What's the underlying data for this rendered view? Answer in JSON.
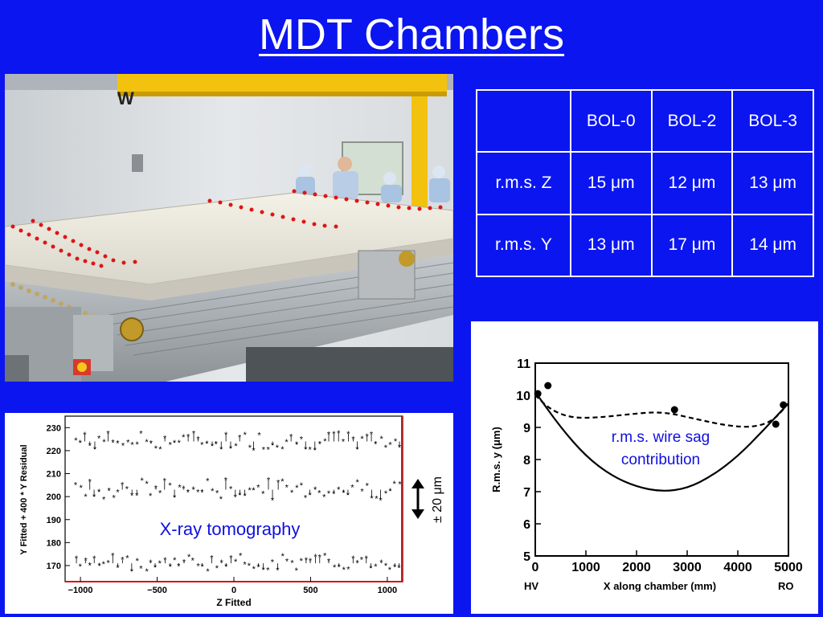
{
  "title": "MDT Chambers",
  "photo": {
    "letter": "W"
  },
  "table": {
    "header": [
      "",
      "BOL-0",
      "BOL-2",
      "BOL-3"
    ],
    "rows": [
      {
        "label": "r.m.s. Z",
        "values": [
          "15 μm",
          "12 μm",
          "13 μm"
        ]
      },
      {
        "label": "r.m.s. Y",
        "values": [
          "13 μm",
          "17 μm",
          "14 μm"
        ]
      }
    ]
  },
  "chart_data": [
    {
      "type": "scatter",
      "title": "X-ray tomography",
      "xlabel": "Z Fitted",
      "ylabel": "Y Fitted + 400 * Y Residual",
      "x_ticks": [
        -1000,
        -500,
        0,
        500,
        1000
      ],
      "y_ticks": [
        170,
        180,
        190,
        200,
        210,
        220,
        230
      ],
      "xlim": [
        -1100,
        1100
      ],
      "ylim": [
        163,
        235
      ],
      "side_note": "± 20 μm",
      "series": [
        {
          "baseline": 224,
          "x_range": [
            -1030,
            1080
          ],
          "n_points": 70,
          "amplitude": 8
        },
        {
          "baseline": 203,
          "x_range": [
            -1030,
            1080
          ],
          "n_points": 70,
          "amplitude": 9
        },
        {
          "baseline": 171,
          "x_range": [
            -1030,
            1080
          ],
          "n_points": 70,
          "amplitude": 7
        }
      ]
    },
    {
      "type": "line",
      "xlabel": "X along chamber (mm)",
      "ylabel": "R.m.s. y (μm)",
      "x_ticks": [
        0,
        1000,
        2000,
        3000,
        4000,
        5000
      ],
      "y_ticks": [
        5,
        6,
        7,
        8,
        9,
        10,
        11
      ],
      "xlim": [
        0,
        5000
      ],
      "ylim": [
        5,
        11
      ],
      "x_end_labels": {
        "left": "HV",
        "right": "RO"
      },
      "annotation": [
        "r.m.s. wire sag",
        "contribution"
      ],
      "points": [
        [
          50,
          10.05
        ],
        [
          250,
          10.3
        ],
        [
          2750,
          9.55
        ],
        [
          4750,
          9.1
        ],
        [
          4900,
          9.7
        ]
      ],
      "solid_curve": [
        [
          0,
          10.1
        ],
        [
          500,
          9.0
        ],
        [
          1000,
          8.1
        ],
        [
          1500,
          7.5
        ],
        [
          2000,
          7.15
        ],
        [
          2500,
          7.0
        ],
        [
          3000,
          7.1
        ],
        [
          3500,
          7.5
        ],
        [
          4000,
          8.1
        ],
        [
          4500,
          8.9
        ],
        [
          5000,
          9.75
        ]
      ],
      "dashed_curve": [
        [
          0,
          10.0
        ],
        [
          300,
          9.55
        ],
        [
          700,
          9.3
        ],
        [
          1200,
          9.3
        ],
        [
          1800,
          9.4
        ],
        [
          2500,
          9.5
        ],
        [
          3200,
          9.25
        ],
        [
          3800,
          9.05
        ],
        [
          4300,
          9.0
        ],
        [
          4700,
          9.2
        ],
        [
          5000,
          9.75
        ]
      ]
    }
  ]
}
